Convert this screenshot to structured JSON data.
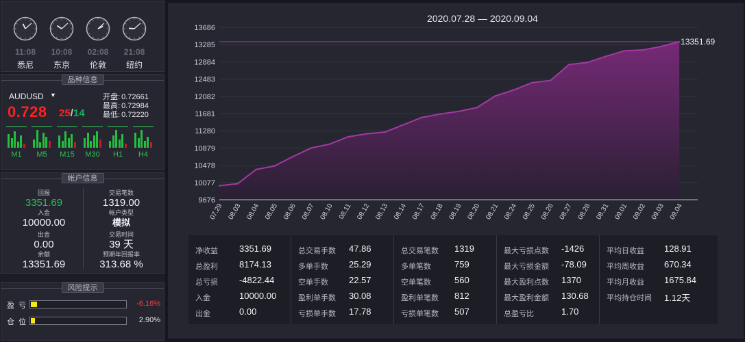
{
  "clocks": [
    {
      "time": "11:08",
      "city": "悉尼",
      "hour": 11,
      "minute": 8
    },
    {
      "time": "10:08",
      "city": "东京",
      "hour": 10,
      "minute": 8
    },
    {
      "time": "02:08",
      "city": "伦敦",
      "hour": 2,
      "minute": 8
    },
    {
      "time": "21:08",
      "city": "纽约",
      "hour": 21,
      "minute": 8
    }
  ],
  "symbol": {
    "section_title": "品种信息",
    "name": "AUDUSD",
    "price": "0.728",
    "spread_ask": "25",
    "spread_sep": "/",
    "spread_bid": "14",
    "open_label": "开盘:",
    "open": "0.72661",
    "high_label": "最高:",
    "high": "0.72984",
    "low_label": "最低:",
    "low": "0.72220",
    "timeframes": [
      "M1",
      "M5",
      "M15",
      "M30",
      "H1",
      "H4"
    ]
  },
  "account": {
    "section_title": "帐户信息",
    "left": [
      {
        "key": "回报",
        "value": "3351.69",
        "green": true
      },
      {
        "key": "入金",
        "value": "10000.00"
      },
      {
        "key": "出金",
        "value": "0.00"
      },
      {
        "key": "余额",
        "value": "13351.69"
      }
    ],
    "right": [
      {
        "key": "交易笔数",
        "value": "1319.00"
      },
      {
        "key": "帐户类型",
        "value": "模拟"
      },
      {
        "key": "交易时间",
        "value": "39 天"
      },
      {
        "key": "预期年回报率",
        "value": "313.68 %"
      }
    ]
  },
  "risk": {
    "section_title": "风险提示",
    "rows": [
      {
        "key": "盈亏",
        "value": "-6.16%",
        "color": "#ff3b3b",
        "fill": 0.0616
      },
      {
        "key": "仓位",
        "value": "2.90%",
        "color": "#e6e6ec",
        "fill": 0.029
      }
    ]
  },
  "chart_data": {
    "type": "area",
    "title": "2020.07.28 — 2020.09.04",
    "end_label": "13351.69",
    "categories": [
      "07.29",
      "08.03",
      "08.04",
      "08.05",
      "08.06",
      "08.07",
      "08.10",
      "08.11",
      "08.12",
      "08.13",
      "08.14",
      "08.17",
      "08.18",
      "08.19",
      "08.20",
      "08.21",
      "08.24",
      "08.25",
      "08.26",
      "08.27",
      "08.28",
      "08.31",
      "09.01",
      "09.02",
      "09.03",
      "09.04"
    ],
    "values": [
      10000,
      10050,
      10380,
      10460,
      10680,
      10880,
      10970,
      11140,
      11210,
      11250,
      11420,
      11590,
      11670,
      11730,
      11820,
      12090,
      12230,
      12400,
      12450,
      12820,
      12870,
      13010,
      13140,
      13160,
      13240,
      13352
    ],
    "yticks": [
      9676,
      10077,
      10478,
      10879,
      11280,
      11681,
      12082,
      12483,
      12884,
      13285,
      13686
    ],
    "ylim": [
      9676,
      13686
    ],
    "reference_line": 13351.69,
    "grid": true,
    "line_color": "#a23aa2",
    "fill_top_color": "#7a2a7a",
    "fill_bottom_color": "#2a1f33"
  },
  "stats": [
    [
      {
        "k": "净收益",
        "v": "3351.69"
      },
      {
        "k": "总盈利",
        "v": "8174.13"
      },
      {
        "k": "总亏损",
        "v": "-4822.44"
      },
      {
        "k": "入金",
        "v": "10000.00"
      },
      {
        "k": "出金",
        "v": "0.00"
      }
    ],
    [
      {
        "k": "总交易手数",
        "v": "47.86"
      },
      {
        "k": "多单手数",
        "v": "25.29"
      },
      {
        "k": "空单手数",
        "v": "22.57"
      },
      {
        "k": "盈利单手数",
        "v": "30.08"
      },
      {
        "k": "亏损单手数",
        "v": "17.78"
      }
    ],
    [
      {
        "k": "总交易笔数",
        "v": "1319"
      },
      {
        "k": "多单笔数",
        "v": "759"
      },
      {
        "k": "空单笔数",
        "v": "560"
      },
      {
        "k": "盈利单笔数",
        "v": "812"
      },
      {
        "k": "亏损单笔数",
        "v": "507"
      }
    ],
    [
      {
        "k": "最大亏损点数",
        "v": "-1426"
      },
      {
        "k": "最大亏损金额",
        "v": "-78.09"
      },
      {
        "k": "最大盈利点数",
        "v": "1370"
      },
      {
        "k": "最大盈利金额",
        "v": "130.68"
      },
      {
        "k": "总盈亏比",
        "v": "1.70"
      }
    ],
    [
      {
        "k": "平均日收益",
        "v": "128.91"
      },
      {
        "k": "平均周收益",
        "v": "670.34"
      },
      {
        "k": "平均月收益",
        "v": "1675.84"
      },
      {
        "k": "平均持仓时间",
        "v": "1.12天"
      }
    ]
  ]
}
